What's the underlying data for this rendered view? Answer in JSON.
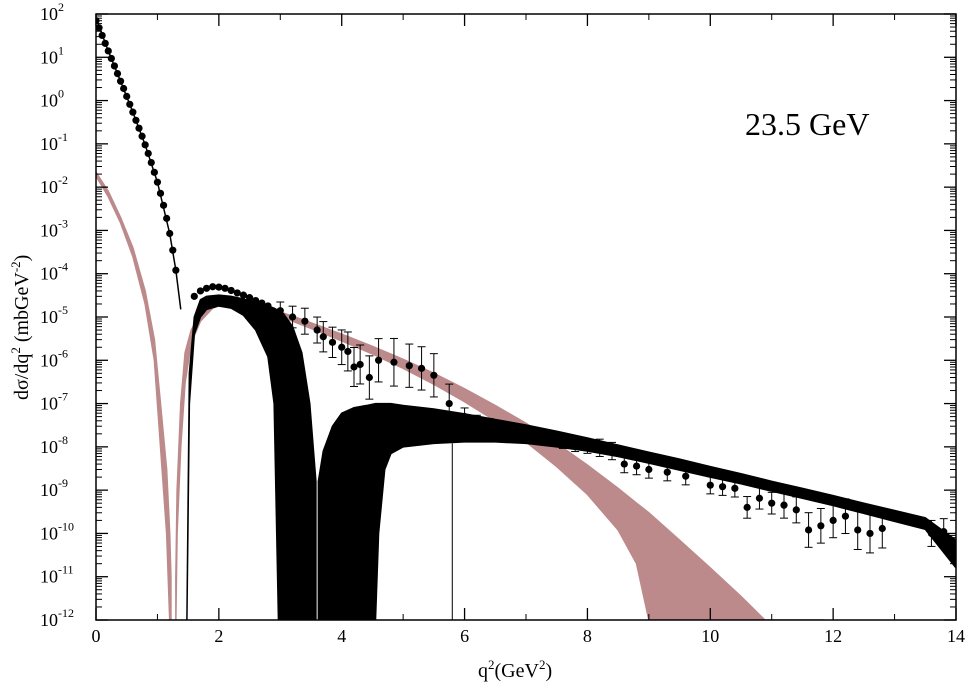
{
  "chart_data": {
    "type": "scatter",
    "x_axis": {
      "label_base": "q",
      "label_exp": "2",
      "label_rest_open": "(GeV",
      "label_rest_exp": "2",
      "label_rest_close": ")",
      "range": [
        0,
        14
      ],
      "tick_labels": [
        "0",
        "2",
        "4",
        "6",
        "8",
        "10",
        "12",
        "14"
      ],
      "tick_values": [
        0,
        2,
        4,
        6,
        8,
        10,
        12,
        14
      ]
    },
    "y_axis": {
      "label_prefix": "dσ/dq",
      "label_exp1": "2",
      "label_mid": " (mbGeV",
      "label_exp2": "-2",
      "label_suffix": ")",
      "scale": "log",
      "range_exp": [
        -12,
        2
      ],
      "tick_base": "10",
      "tick_exponents": [
        "2",
        "1",
        "0",
        "-1",
        "-2",
        "-3",
        "-4",
        "-5",
        "-6",
        "-7",
        "-8",
        "-9",
        "-10",
        "-11",
        "-12"
      ]
    },
    "annotation": "23.5 GeV",
    "colors": {
      "data": "#000000",
      "band_black": "#000000",
      "band_pink": "#bc8a8a"
    },
    "series": [
      {
        "kind": "points_with_errors",
        "points": [
          [
            0.0,
            70,
            0
          ],
          [
            0.05,
            48,
            0
          ],
          [
            0.1,
            32,
            0
          ],
          [
            0.15,
            21,
            0
          ],
          [
            0.2,
            14,
            0
          ],
          [
            0.25,
            9.4,
            0
          ],
          [
            0.3,
            6.3,
            0
          ],
          [
            0.35,
            4.2,
            0
          ],
          [
            0.4,
            2.8,
            0
          ],
          [
            0.45,
            1.9,
            0
          ],
          [
            0.5,
            1.25,
            0
          ],
          [
            0.55,
            0.82,
            0
          ],
          [
            0.6,
            0.54,
            0
          ],
          [
            0.65,
            0.35,
            0
          ],
          [
            0.7,
            0.23,
            0
          ],
          [
            0.75,
            0.15,
            0
          ],
          [
            0.8,
            0.095,
            0
          ],
          [
            0.85,
            0.06,
            0
          ],
          [
            0.9,
            0.037,
            0
          ],
          [
            0.95,
            0.022,
            0
          ],
          [
            1.0,
            0.013,
            0
          ],
          [
            1.05,
            0.0072,
            0
          ],
          [
            1.1,
            0.0038,
            0
          ],
          [
            1.15,
            0.0019,
            0
          ],
          [
            1.2,
            0.00085,
            0
          ],
          [
            1.25,
            0.00035,
            0
          ],
          [
            1.3,
            0.00012,
            0
          ],
          [
            1.6,
            3e-05,
            0
          ],
          [
            1.7,
            4e-05,
            0
          ],
          [
            1.8,
            4.6e-05,
            0
          ],
          [
            1.9,
            5e-05,
            0
          ],
          [
            2.0,
            4.9e-05,
            0
          ],
          [
            2.1,
            4.6e-05,
            0
          ],
          [
            2.2,
            4.1e-05,
            0
          ],
          [
            2.3,
            3.6e-05,
            0
          ],
          [
            2.4,
            3.2e-05,
            0
          ],
          [
            2.5,
            2.8e-05,
            0
          ],
          [
            2.6,
            2.4e-05,
            0
          ],
          [
            2.7,
            2.1e-05,
            0
          ],
          [
            2.8,
            1.8e-05,
            0
          ],
          [
            3.0,
            1.4e-05,
            0.2
          ],
          [
            3.2,
            1e-05,
            0.25
          ],
          [
            3.4,
            8e-06,
            0.3
          ],
          [
            3.6,
            5e-06,
            0.3
          ],
          [
            3.7,
            3.5e-06,
            0.35
          ],
          [
            3.85,
            2.6e-06,
            0.35
          ],
          [
            4.0,
            2e-06,
            0.4
          ],
          [
            4.1,
            1.6e-06,
            0.45
          ],
          [
            4.2,
            7e-07,
            0.45
          ],
          [
            4.3,
            8e-07,
            0.45
          ],
          [
            4.45,
            4e-07,
            0.5
          ],
          [
            4.6,
            1e-06,
            0.5
          ],
          [
            4.85,
            9e-07,
            0.55
          ],
          [
            5.1,
            7.5e-07,
            0.5
          ],
          [
            5.3,
            6.5e-07,
            0.5
          ],
          [
            5.5,
            4.5e-07,
            0.5
          ],
          [
            5.75,
            1e-07,
            0.45
          ],
          [
            6.0,
            5e-08,
            0.2
          ],
          [
            6.2,
            3.8e-08,
            0.15
          ],
          [
            6.4,
            3.2e-08,
            0.15
          ],
          [
            6.6,
            2.6e-08,
            0.15
          ],
          [
            6.8,
            2.3e-08,
            0.15
          ],
          [
            7.0,
            1.9e-08,
            0.15
          ],
          [
            7.2,
            1.7e-08,
            0.15
          ],
          [
            7.4,
            1.5e-08,
            0.15
          ],
          [
            7.6,
            1.3e-08,
            0.15
          ],
          [
            7.8,
            1.1e-08,
            0.15
          ],
          [
            8.0,
            1e-08,
            0.15
          ],
          [
            8.2,
            9.5e-09,
            0.2
          ],
          [
            8.4,
            8e-09,
            0.2
          ],
          [
            8.6,
            4e-09,
            0.2
          ],
          [
            8.8,
            3.6e-09,
            0.2
          ],
          [
            9.0,
            3e-09,
            0.2
          ],
          [
            9.3,
            2.6e-09,
            0.2
          ],
          [
            9.6,
            2.1e-09,
            0.2
          ],
          [
            10.0,
            1.3e-09,
            0.2
          ],
          [
            10.2,
            1.2e-09,
            0.2
          ],
          [
            10.4,
            1.1e-09,
            0.2
          ],
          [
            10.6,
            4e-10,
            0.25
          ],
          [
            10.8,
            6.5e-10,
            0.25
          ],
          [
            11.0,
            5e-10,
            0.25
          ],
          [
            11.2,
            4.5e-10,
            0.3
          ],
          [
            11.4,
            3.5e-10,
            0.3
          ],
          [
            11.6,
            1.2e-10,
            0.4
          ],
          [
            11.8,
            1.5e-10,
            0.4
          ],
          [
            12.0,
            2e-10,
            0.4
          ],
          [
            12.2,
            2.5e-10,
            0.4
          ],
          [
            12.4,
            1.2e-10,
            0.45
          ],
          [
            12.6,
            1e-10,
            0.45
          ],
          [
            12.8,
            1.3e-10,
            0.45
          ],
          [
            13.6,
            1e-10,
            0.3
          ],
          [
            13.8,
            1.1e-10,
            0.3
          ]
        ]
      },
      {
        "kind": "band",
        "color": "black",
        "segments": [
          [
            [
              0.0,
              80,
              80
            ],
            [
              0.2,
              14,
              14
            ],
            [
              0.4,
              2.8,
              2.8
            ],
            [
              0.6,
              0.54,
              0.54
            ],
            [
              0.8,
              0.095,
              0.095
            ],
            [
              1.0,
              0.013,
              0.013
            ],
            [
              1.2,
              0.00085,
              0.00085
            ],
            [
              1.3,
              0.00012,
              0.00012
            ],
            [
              1.38,
              1.5e-05,
              1.5e-05
            ]
          ],
          [
            [
              1.48,
              1e-12,
              1e-12
            ],
            [
              1.52,
              1e-07,
              5e-07
            ],
            [
              1.6,
              4e-06,
              1e-05
            ],
            [
              1.7,
              1e-05,
              2.5e-05
            ],
            [
              1.8,
              1.5e-05,
              3e-05
            ],
            [
              2.0,
              1.8e-05,
              3.2e-05
            ],
            [
              2.2,
              1.6e-05,
              3e-05
            ],
            [
              2.4,
              1.1e-05,
              2.6e-05
            ],
            [
              2.6,
              5e-06,
              2.2e-05
            ],
            [
              2.8,
              1.2e-06,
              1.8e-05
            ],
            [
              2.9,
              1e-07,
              1.6e-05
            ],
            [
              2.97,
              1e-12,
              1.4e-05
            ],
            [
              3.05,
              1e-12,
              1.2e-05
            ],
            [
              3.2,
              1e-12,
              6e-06
            ],
            [
              3.35,
              1e-12,
              1.5e-06
            ],
            [
              3.48,
              1e-12,
              1e-07
            ],
            [
              3.58,
              1e-12,
              1.6e-09
            ]
          ],
          [
            [
              3.62,
              1e-12,
              1.6e-09
            ],
            [
              3.7,
              1e-12,
              8e-09
            ],
            [
              3.85,
              1e-12,
              3e-08
            ],
            [
              4.0,
              1e-12,
              6e-08
            ],
            [
              4.2,
              1e-12,
              8e-08
            ],
            [
              4.4,
              1e-12,
              9e-08
            ],
            [
              4.55,
              1e-12,
              1e-07
            ],
            [
              4.6,
              1e-10,
              1e-07
            ],
            [
              4.7,
              3e-09,
              1e-07
            ],
            [
              4.8,
              7e-09,
              1e-07
            ],
            [
              5.0,
              1e-08,
              9e-08
            ],
            [
              5.5,
              1.2e-08,
              7.5e-08
            ],
            [
              6.0,
              1.3e-08,
              5.8e-08
            ],
            [
              6.5,
              1.3e-08,
              4.3e-08
            ],
            [
              7.0,
              1.2e-08,
              3.2e-08
            ],
            [
              7.5,
              1e-08,
              2.3e-08
            ],
            [
              8.0,
              8e-09,
              1.6e-08
            ],
            [
              8.5,
              6e-09,
              1.1e-08
            ],
            [
              9.0,
              4.2e-09,
              7.5e-09
            ],
            [
              9.5,
              2.9e-09,
              5.2e-09
            ],
            [
              10.0,
              2e-09,
              3.5e-09
            ],
            [
              10.5,
              1.4e-09,
              2.4e-09
            ],
            [
              11.0,
              9.5e-10,
              1.6e-09
            ],
            [
              11.5,
              6.5e-10,
              1.1e-09
            ],
            [
              12.0,
              4.4e-10,
              7.5e-10
            ],
            [
              12.5,
              2.9e-10,
              5e-10
            ],
            [
              13.0,
              1.9e-10,
              3.4e-10
            ],
            [
              13.5,
              1.25e-10,
              2.3e-10
            ],
            [
              14.0,
              1.6e-11,
              7e-11
            ]
          ]
        ]
      },
      {
        "kind": "band",
        "color": "pink",
        "segments": [
          [
            [
              0.0,
              0.018,
              0.022
            ],
            [
              0.2,
              0.006,
              0.008
            ],
            [
              0.4,
              0.0015,
              0.002
            ],
            [
              0.6,
              0.00025,
              0.0004
            ],
            [
              0.8,
              2e-05,
              4e-05
            ],
            [
              0.95,
              1e-06,
              3e-06
            ],
            [
              1.05,
              1e-08,
              1e-07
            ],
            [
              1.15,
              1e-10,
              3e-09
            ],
            [
              1.2,
              1e-12,
              1e-10
            ],
            [
              1.22,
              1e-12,
              1e-11
            ]
          ],
          [
            [
              1.3,
              1e-12,
              1e-11
            ],
            [
              1.32,
              1e-10,
              1e-09
            ],
            [
              1.38,
              1e-08,
              1e-07
            ],
            [
              1.45,
              3e-07,
              1.5e-06
            ],
            [
              1.55,
              2.5e-06,
              5e-06
            ],
            [
              1.7,
              8e-06,
              1.2e-05
            ],
            [
              1.9,
              1.6e-05,
              2e-05
            ],
            [
              2.1,
              2.1e-05,
              2.5e-05
            ],
            [
              2.4,
              1.9e-05,
              2.3e-05
            ],
            [
              2.8,
              1.3e-05,
              1.6e-05
            ],
            [
              3.2,
              8e-06,
              1.05e-05
            ],
            [
              3.6,
              4.8e-06,
              6.5e-06
            ],
            [
              4.0,
              2.8e-06,
              4e-06
            ],
            [
              4.5,
              1.4e-06,
              2.1e-06
            ],
            [
              5.0,
              6.5e-07,
              1.05e-06
            ],
            [
              5.5,
              2.8e-07,
              5e-07
            ],
            [
              6.0,
              1.1e-07,
              2.2e-07
            ],
            [
              6.5,
              4e-08,
              9e-08
            ],
            [
              7.0,
              1.3e-08,
              3.5e-08
            ],
            [
              7.5,
              3.5e-09,
              1.2e-08
            ],
            [
              8.0,
              8e-10,
              3.8e-09
            ],
            [
              8.5,
              1.2e-10,
              1.1e-09
            ],
            [
              8.8,
              2e-11,
              5e-10
            ],
            [
              9.0,
              1e-12,
              3e-10
            ],
            [
              9.5,
              1e-12,
              7e-11
            ],
            [
              10.0,
              1e-12,
              1.6e-11
            ],
            [
              10.5,
              1e-12,
              3.5e-12
            ],
            [
              11.0,
              1e-12,
              7e-13
            ],
            [
              11.5,
              1e-12,
              1.3e-13
            ],
            [
              11.85,
              1e-12,
              3e-14
            ]
          ]
        ]
      },
      {
        "kind": "vline",
        "x": 5.8,
        "y_range": [
          1e-12,
          1.2e-08
        ]
      }
    ]
  }
}
